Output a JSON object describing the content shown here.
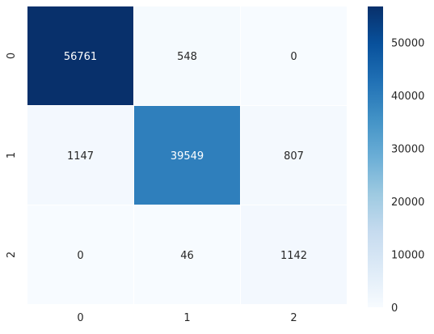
{
  "chart_data": {
    "type": "heatmap",
    "title": "",
    "xlabel": "",
    "ylabel": "",
    "x_categories": [
      "0",
      "1",
      "2"
    ],
    "y_categories": [
      "0",
      "1",
      "2"
    ],
    "values": [
      [
        56761,
        548,
        0
      ],
      [
        1147,
        39549,
        807
      ],
      [
        0,
        46,
        1142
      ]
    ],
    "colormap": "Blues",
    "color_range": [
      0,
      56761
    ],
    "colorbar_ticks": [
      0,
      10000,
      20000,
      30000,
      40000,
      50000
    ],
    "grid": true,
    "annotations": true
  }
}
